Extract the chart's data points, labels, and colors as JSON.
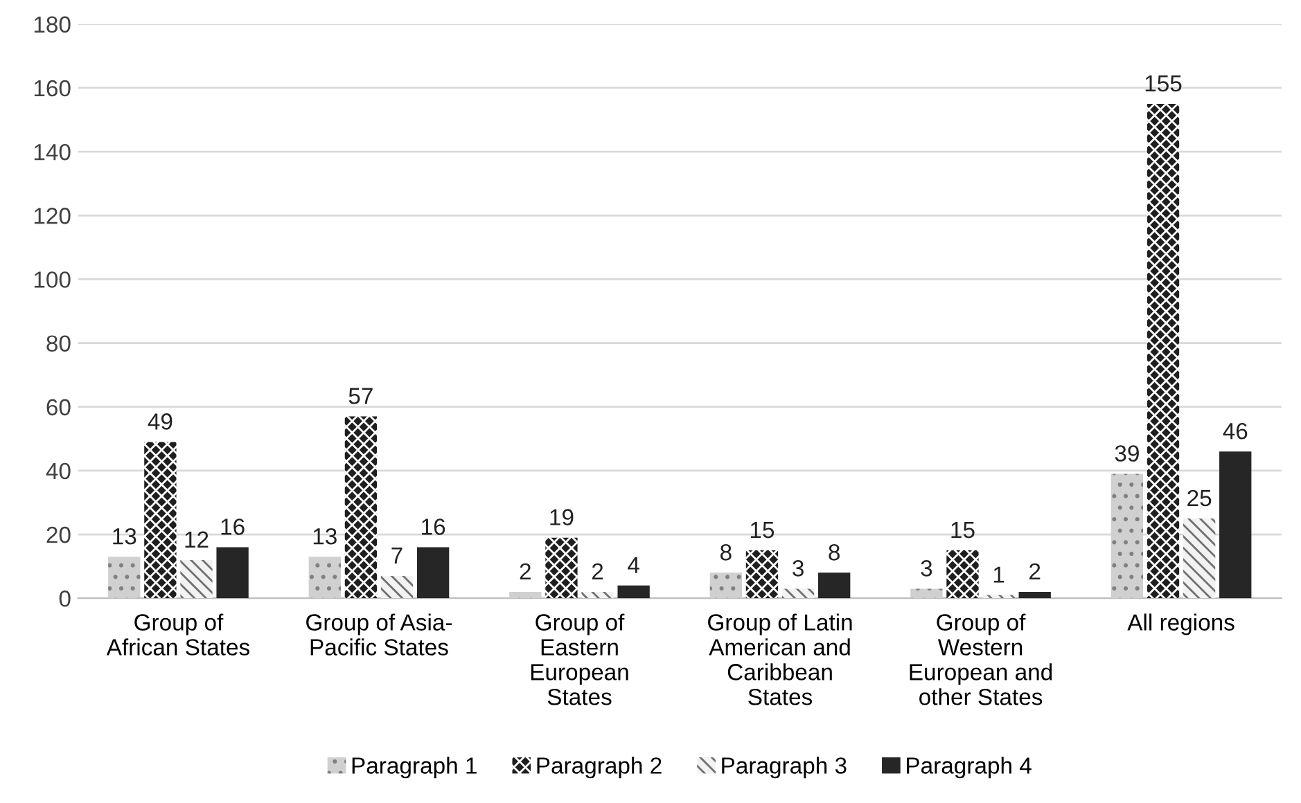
{
  "chart_data": {
    "type": "bar",
    "categories": [
      "Group of\nAfrican States",
      "Group of Asia-\nPacific States",
      "Group of\nEastern\nEuropean\nStates",
      "Group of Latin\nAmerican and\nCaribbean\nStates",
      "Group of\nWestern\nEuropean and\nother States",
      "All regions"
    ],
    "series": [
      {
        "name": "Paragraph 1",
        "color": "#d0d0d0",
        "values": [
          13,
          13,
          2,
          8,
          3,
          39
        ]
      },
      {
        "name": "Paragraph 2",
        "color": "#1f1f1f",
        "values": [
          49,
          57,
          19,
          15,
          15,
          155
        ]
      },
      {
        "name": "Paragraph 3",
        "color": "#c8c8c8",
        "values": [
          12,
          7,
          2,
          3,
          1,
          25
        ]
      },
      {
        "name": "Paragraph 4",
        "color": "#262626",
        "values": [
          16,
          16,
          4,
          8,
          2,
          46
        ]
      }
    ],
    "ylim": [
      0,
      180
    ],
    "yticks": [
      0,
      20,
      40,
      60,
      80,
      100,
      120,
      140,
      160,
      180
    ],
    "grid": "y",
    "legend": "bottom",
    "data_labels": true
  }
}
